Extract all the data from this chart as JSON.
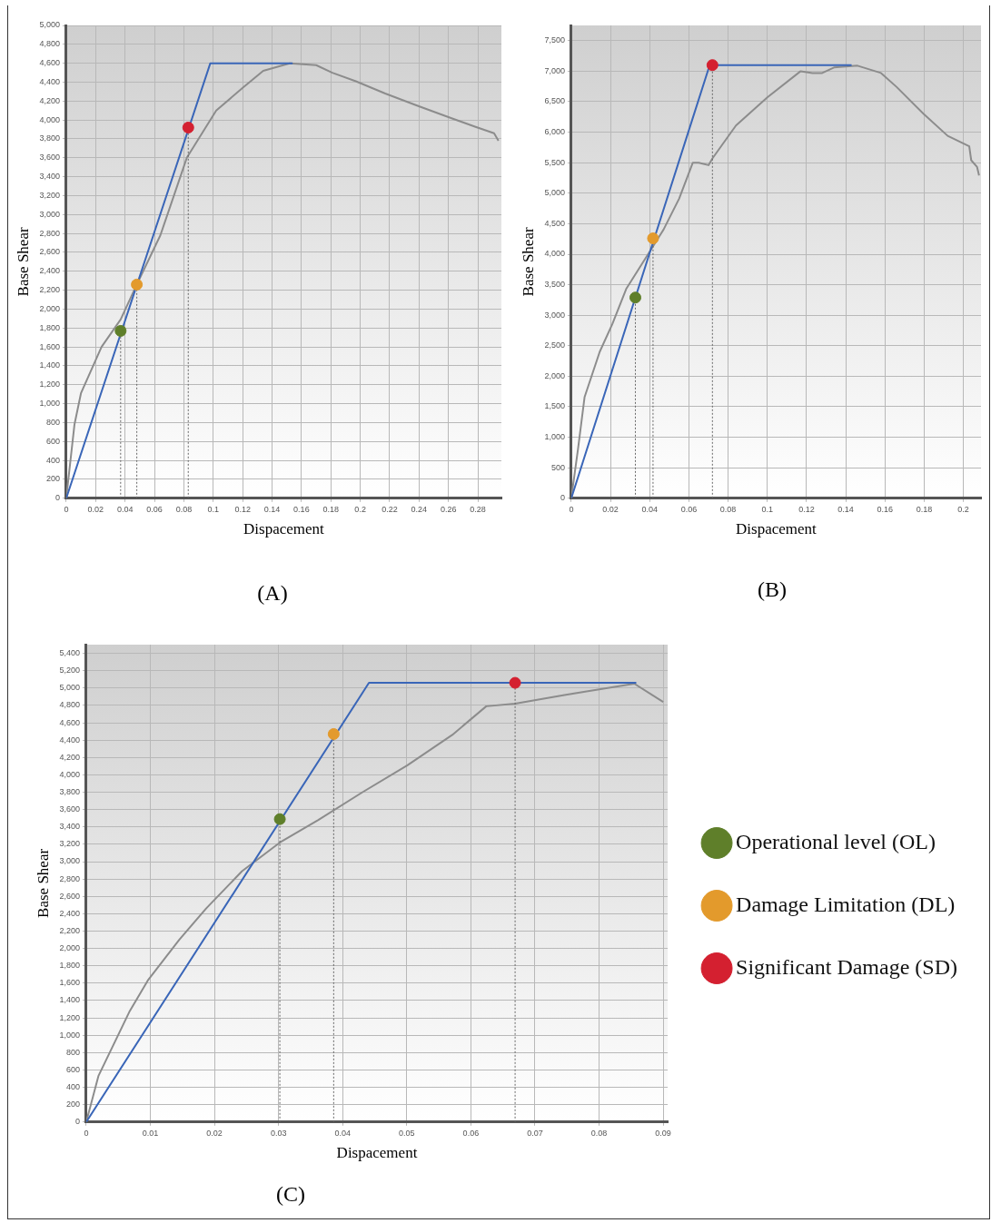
{
  "chart_data": [
    {
      "type": "line",
      "title": "(A)",
      "xlabel": "Dispacement",
      "ylabel": "Base Shear",
      "xlim": [
        0,
        0.296
      ],
      "ylim": [
        0,
        5000
      ],
      "xticks": [
        0,
        0.02,
        0.04,
        0.06,
        0.08,
        0.1,
        0.12,
        0.14,
        0.16,
        0.18,
        0.2,
        0.22,
        0.24,
        0.26,
        0.28
      ],
      "yticks": [
        0,
        200,
        400,
        600,
        800,
        {
          "value": 1000,
          "label": "1,000"
        },
        {
          "value": 1200,
          "label": "1,200"
        },
        {
          "value": 1400,
          "label": "1,400"
        },
        {
          "value": 1600,
          "label": "1,600"
        },
        {
          "value": 1800,
          "label": "1,800"
        },
        {
          "value": 2000,
          "label": "2,000"
        },
        {
          "value": 2200,
          "label": "2,200"
        },
        {
          "value": 2400,
          "label": "2,400"
        },
        {
          "value": 2600,
          "label": "2,600"
        },
        {
          "value": 2800,
          "label": "2,800"
        },
        {
          "value": 3000,
          "label": "3,000"
        },
        {
          "value": 3200,
          "label": "3,200"
        },
        {
          "value": 3400,
          "label": "3,400"
        },
        {
          "value": 3600,
          "label": "3,600"
        },
        {
          "value": 3800,
          "label": "3,800"
        },
        {
          "value": 4000,
          "label": "4,000"
        },
        {
          "value": 4200,
          "label": "4,200"
        },
        {
          "value": 4400,
          "label": "4,400"
        },
        {
          "value": 4600,
          "label": "4,600"
        },
        {
          "value": 4800,
          "label": "4,800"
        },
        {
          "value": 5000,
          "label": "5,000"
        }
      ],
      "grid": true,
      "legend": false,
      "marker": "none",
      "line_style": "solid",
      "series": [
        {
          "type": "line",
          "color": "#8c8c8c",
          "x": [
            0,
            0.0056,
            0.01,
            0.024,
            0.037,
            0.048,
            0.064,
            0.082,
            0.102,
            0.12,
            0.134,
            0.152,
            0.17,
            0.181,
            0.197,
            0.217,
            0.239,
            0.26,
            0.278,
            0.291,
            0.294
          ],
          "values": [
            0,
            780,
            1110,
            1600,
            1890,
            2260,
            2780,
            3600,
            4100,
            4340,
            4520,
            4600,
            4580,
            4500,
            4410,
            4280,
            4150,
            4030,
            3930,
            3860,
            3780
          ]
        },
        {
          "type": "line",
          "color": "#3a66b8",
          "x": [
            0,
            0.098,
            0.154
          ],
          "values": [
            0,
            4600,
            4600
          ]
        },
        {
          "type": "line",
          "color": "#666666",
          "line_style": "dotted",
          "x": [
            0.037,
            0.037
          ],
          "values": [
            0,
            1770
          ]
        },
        {
          "type": "line",
          "color": "#666666",
          "line_style": "dotted",
          "x": [
            0.048,
            0.048
          ],
          "values": [
            0,
            2260
          ]
        },
        {
          "type": "line",
          "color": "#666666",
          "line_style": "dotted",
          "x": [
            0.083,
            0.083
          ],
          "values": [
            0,
            3920
          ]
        },
        {
          "type": "scatter",
          "marker": "circle",
          "color": "#5f7f2a",
          "x": [
            0.037
          ],
          "values": [
            1770
          ]
        },
        {
          "type": "scatter",
          "marker": "circle",
          "color": "#e39a2c",
          "x": [
            0.048
          ],
          "values": [
            2260
          ]
        },
        {
          "type": "scatter",
          "marker": "circle",
          "color": "#d42030",
          "x": [
            0.083
          ],
          "values": [
            3920
          ]
        }
      ]
    },
    {
      "type": "line",
      "title": "(B)",
      "xlabel": "Dispacement",
      "ylabel": "Base Shear",
      "xlim": [
        0,
        0.209
      ],
      "ylim": [
        0,
        7750
      ],
      "xticks": [
        0,
        0.02,
        0.04,
        0.06,
        0.08,
        0.1,
        0.12,
        0.14,
        0.16,
        0.18,
        0.2
      ],
      "yticks": [
        0,
        500,
        {
          "value": 1000,
          "label": "1,000"
        },
        {
          "value": 1500,
          "label": "1,500"
        },
        {
          "value": 2000,
          "label": "2,000"
        },
        {
          "value": 2500,
          "label": "2,500"
        },
        {
          "value": 3000,
          "label": "3,000"
        },
        {
          "value": 3500,
          "label": "3,500"
        },
        {
          "value": 4000,
          "label": "4,000"
        },
        {
          "value": 4500,
          "label": "4,500"
        },
        {
          "value": 5000,
          "label": "5,000"
        },
        {
          "value": 5500,
          "label": "5,500"
        },
        {
          "value": 6000,
          "label": "6,000"
        },
        {
          "value": 6500,
          "label": "6,500"
        },
        {
          "value": 7000,
          "label": "7,000"
        },
        {
          "value": 7500,
          "label": "7,500"
        }
      ],
      "grid": true,
      "legend": false,
      "marker": "none",
      "line_style": "solid",
      "series": [
        {
          "type": "line",
          "color": "#8c8c8c",
          "x": [
            0,
            0.0034,
            0.0068,
            0.0145,
            0.021,
            0.028,
            0.038,
            0.047,
            0.055,
            0.062,
            0.065,
            0.07,
            0.072,
            0.084,
            0.1,
            0.117,
            0.123,
            0.128,
            0.134,
            0.146,
            0.158,
            0.166,
            0.18,
            0.192,
            0.203,
            0.204,
            0.207,
            0.208
          ],
          "values": [
            0,
            800,
            1660,
            2400,
            2860,
            3430,
            3940,
            4400,
            4910,
            5500,
            5500,
            5460,
            5570,
            6110,
            6570,
            7000,
            6970,
            6970,
            7060,
            7090,
            6970,
            6740,
            6290,
            5940,
            5770,
            5540,
            5430,
            5290
          ]
        },
        {
          "type": "line",
          "color": "#3a66b8",
          "x": [
            0,
            0.0706,
            0.143
          ],
          "values": [
            0,
            7100,
            7100
          ]
        },
        {
          "type": "line",
          "color": "#666666",
          "line_style": "dotted",
          "x": [
            0.0327,
            0.0327
          ],
          "values": [
            0,
            3290
          ]
        },
        {
          "type": "line",
          "color": "#666666",
          "line_style": "dotted",
          "x": [
            0.0417,
            0.0417
          ],
          "values": [
            0,
            4260
          ]
        },
        {
          "type": "line",
          "color": "#666666",
          "line_style": "dotted",
          "x": [
            0.072,
            0.072
          ],
          "values": [
            0,
            7100
          ]
        },
        {
          "type": "scatter",
          "marker": "circle",
          "color": "#5f7f2a",
          "x": [
            0.0327
          ],
          "values": [
            3290
          ]
        },
        {
          "type": "scatter",
          "marker": "circle",
          "color": "#e39a2c",
          "x": [
            0.0417
          ],
          "values": [
            4260
          ]
        },
        {
          "type": "scatter",
          "marker": "circle",
          "color": "#d42030",
          "x": [
            0.072
          ],
          "values": [
            7100
          ]
        }
      ]
    },
    {
      "type": "line",
      "title": "(C)",
      "xlabel": "Dispacement",
      "ylabel": "Base Shear",
      "xlim": [
        0,
        0.0907
      ],
      "ylim": [
        0,
        5500
      ],
      "xticks": [
        0,
        0.01,
        0.02,
        0.03,
        0.04,
        0.05,
        0.06,
        0.07,
        0.08,
        0.09
      ],
      "yticks": [
        0,
        200,
        400,
        600,
        800,
        {
          "value": 1000,
          "label": "1,000"
        },
        {
          "value": 1200,
          "label": "1,200"
        },
        {
          "value": 1400,
          "label": "1,400"
        },
        {
          "value": 1600,
          "label": "1,600"
        },
        {
          "value": 1800,
          "label": "1,800"
        },
        {
          "value": 2000,
          "label": "2,000"
        },
        {
          "value": 2200,
          "label": "2,200"
        },
        {
          "value": 2400,
          "label": "2,400"
        },
        {
          "value": 2600,
          "label": "2,600"
        },
        {
          "value": 2800,
          "label": "2,800"
        },
        {
          "value": 3000,
          "label": "3,000"
        },
        {
          "value": 3200,
          "label": "3,200"
        },
        {
          "value": 3400,
          "label": "3,400"
        },
        {
          "value": 3600,
          "label": "3,600"
        },
        {
          "value": 3800,
          "label": "3,800"
        },
        {
          "value": 4000,
          "label": "4,000"
        },
        {
          "value": 4200,
          "label": "4,200"
        },
        {
          "value": 4400,
          "label": "4,400"
        },
        {
          "value": 4600,
          "label": "4,600"
        },
        {
          "value": 4800,
          "label": "4,800"
        },
        {
          "value": 5000,
          "label": "5,000"
        },
        {
          "value": 5200,
          "label": "5,200"
        },
        {
          "value": 5400,
          "label": "5,400"
        }
      ],
      "grid": true,
      "legend": "right",
      "marker": "none",
      "line_style": "solid",
      "series": [
        {
          "type": "line",
          "color": "#8c8c8c",
          "x": [
            0,
            0.0019,
            0.0068,
            0.0096,
            0.0145,
            0.0187,
            0.0243,
            0.0302,
            0.0362,
            0.0431,
            0.0501,
            0.0571,
            0.0624,
            0.0669,
            0.0746,
            0.0855,
            0.09
          ],
          "values": [
            0,
            530,
            1280,
            1630,
            2100,
            2460,
            2890,
            3220,
            3480,
            3800,
            4110,
            4460,
            4790,
            4820,
            4920,
            5050,
            4840
          ]
        },
        {
          "type": "line",
          "color": "#3a66b8",
          "x": [
            0,
            0.0441,
            0.0858
          ],
          "values": [
            0,
            5060,
            5060
          ]
        },
        {
          "type": "line",
          "color": "#666666",
          "line_style": "dotted",
          "x": [
            0.0302,
            0.0302
          ],
          "values": [
            0,
            3490
          ]
        },
        {
          "type": "line",
          "color": "#666666",
          "line_style": "dotted",
          "x": [
            0.0386,
            0.0386
          ],
          "values": [
            0,
            4470
          ]
        },
        {
          "type": "line",
          "color": "#666666",
          "line_style": "dotted",
          "x": [
            0.0669,
            0.0669
          ],
          "values": [
            0,
            5060
          ]
        },
        {
          "type": "scatter",
          "marker": "circle",
          "name": "Operational level (OL)",
          "color": "#5f7f2a",
          "x": [
            0.0302
          ],
          "values": [
            3490
          ]
        },
        {
          "type": "scatter",
          "marker": "circle",
          "name": "Damage Limitation (DL)",
          "color": "#e39a2c",
          "x": [
            0.0386
          ],
          "values": [
            4470
          ]
        },
        {
          "type": "scatter",
          "marker": "circle",
          "name": "Significant Damage (SD)",
          "color": "#d42030",
          "x": [
            0.0669
          ],
          "values": [
            5060
          ]
        }
      ]
    }
  ]
}
